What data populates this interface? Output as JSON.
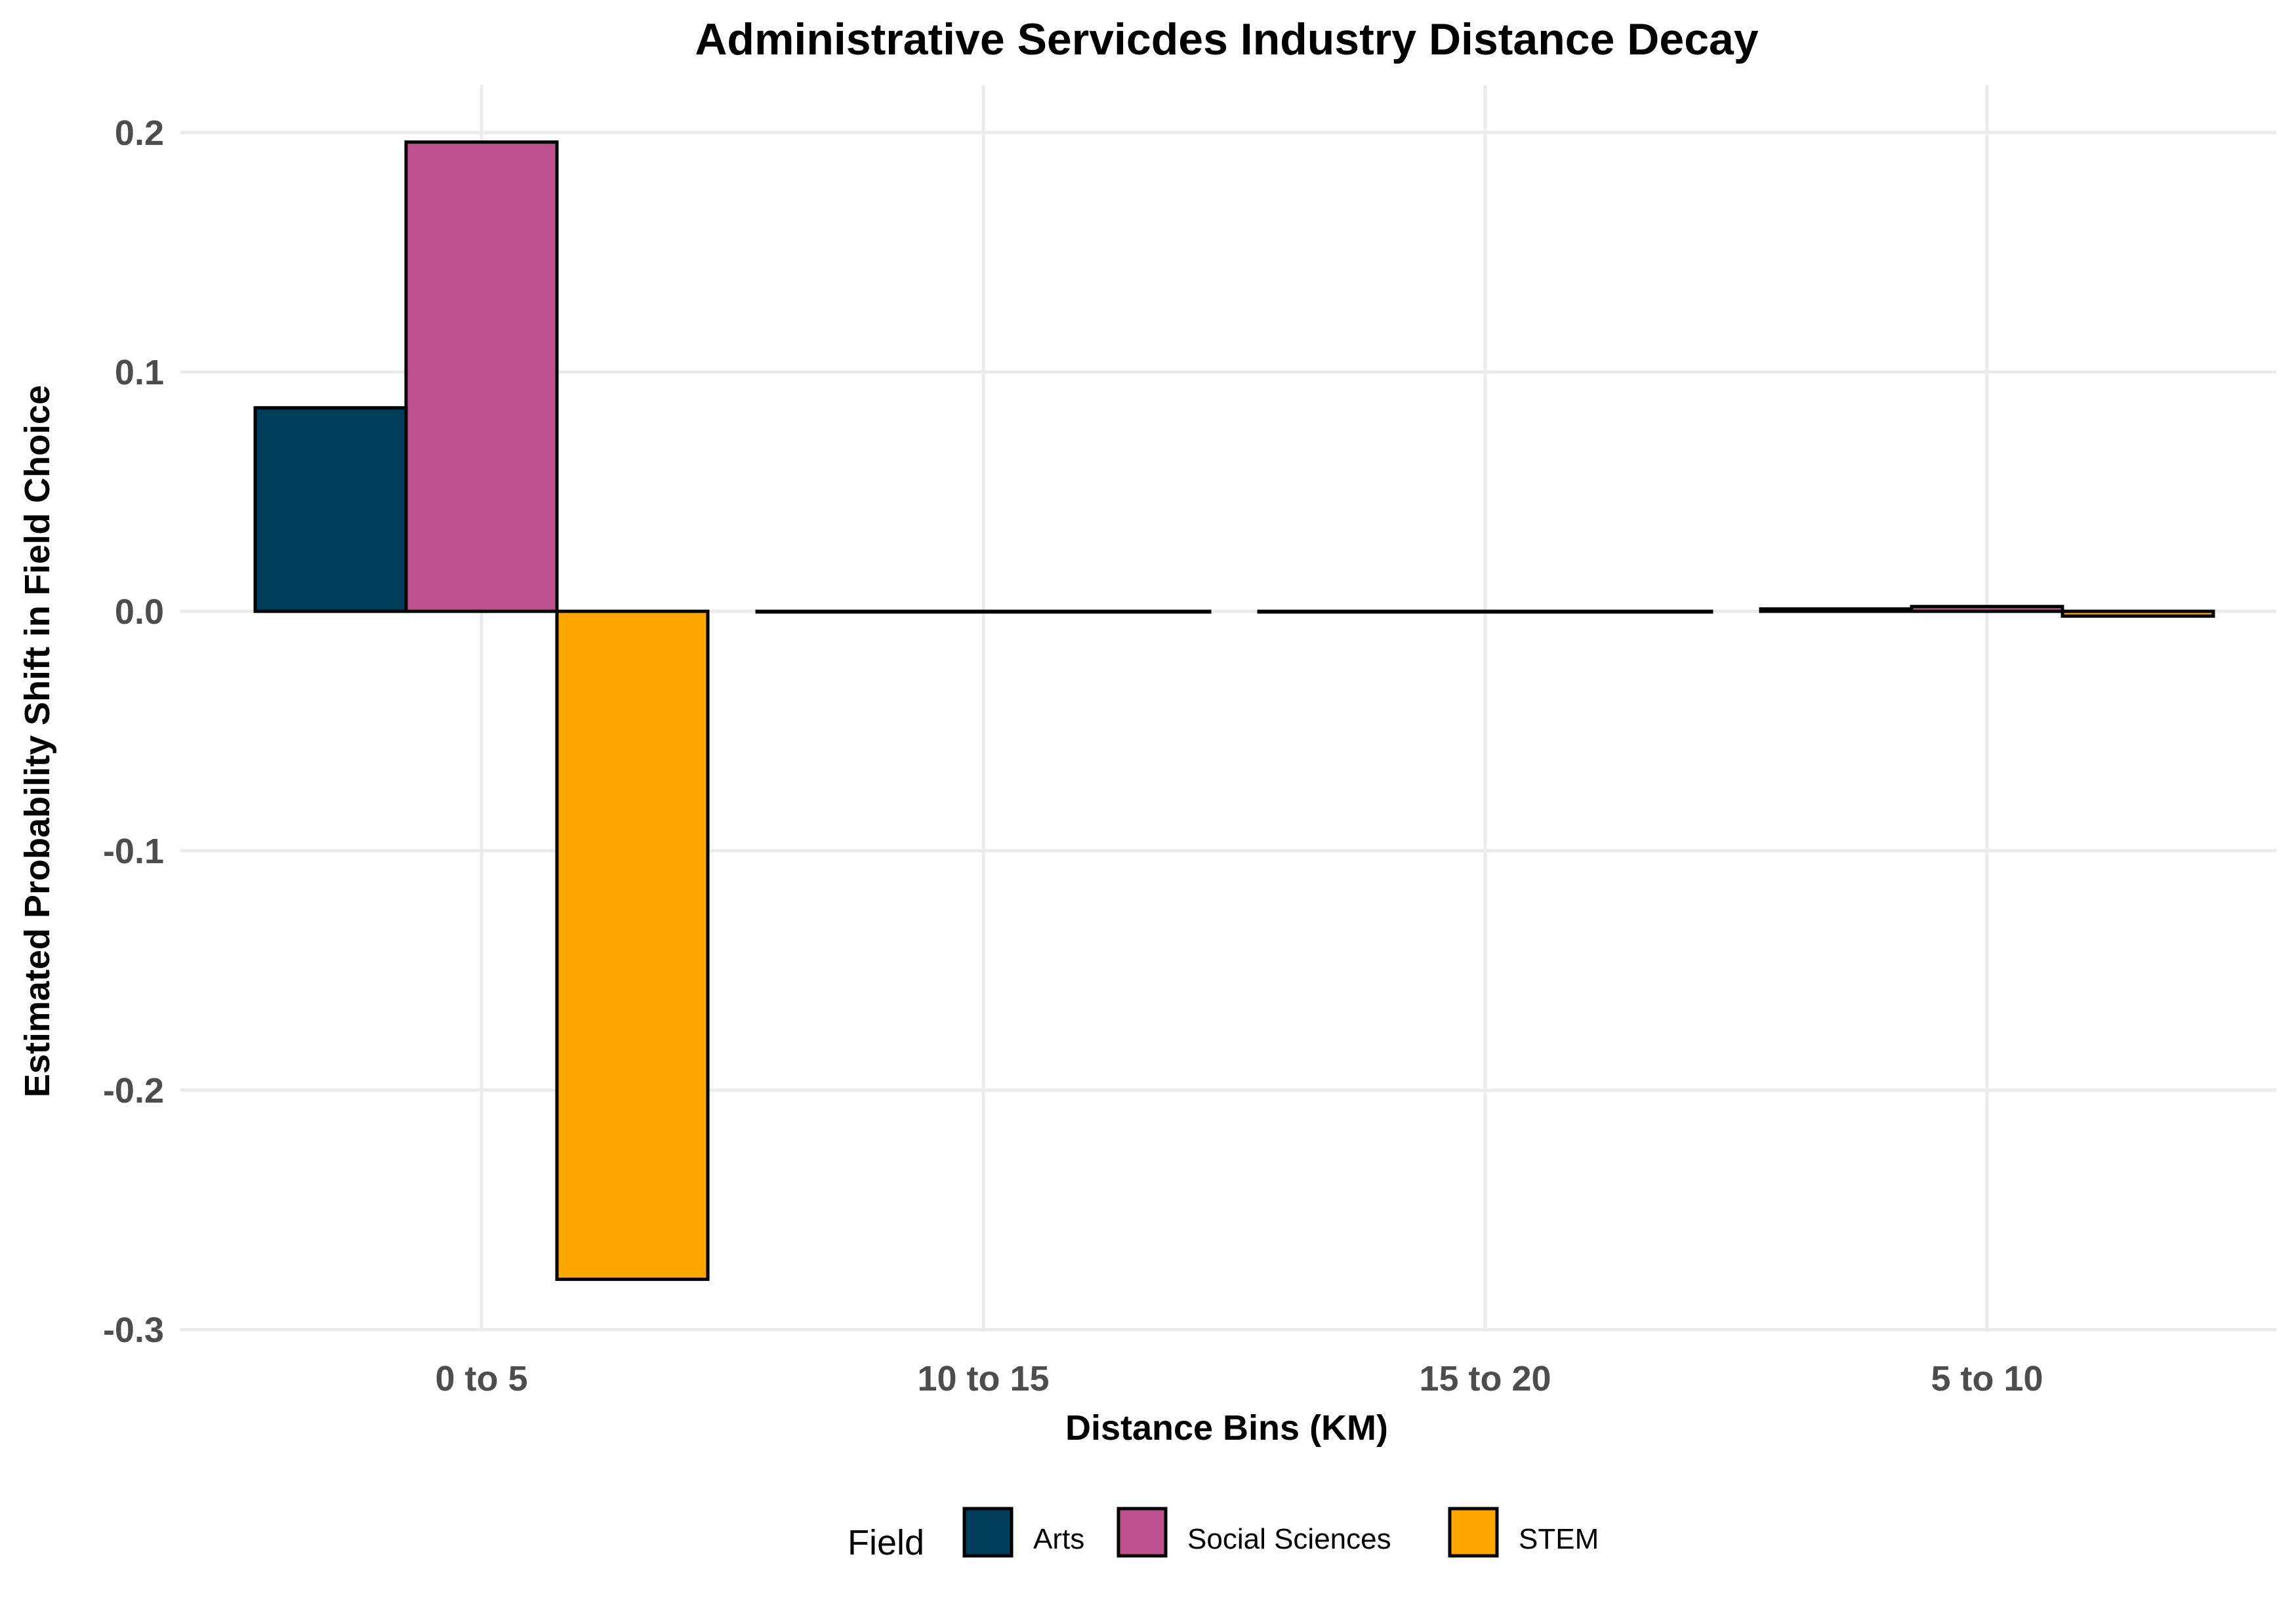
{
  "chart_data": {
    "type": "bar",
    "title": "Administrative Servicdes Industry Distance Decay",
    "xlabel": "Distance Bins (KM)",
    "ylabel": "Estimated Probability Shift in Field Choice",
    "categories": [
      "0 to 5",
      "10 to 15",
      "15 to 20",
      "5 to 10"
    ],
    "series": [
      {
        "name": "Arts",
        "color": "#003f5c",
        "values": [
          0.085,
          0.0,
          0.0,
          0.001
        ]
      },
      {
        "name": "Social Sciences",
        "color": "#bc5090",
        "values": [
          0.196,
          0.0,
          0.0,
          0.002
        ]
      },
      {
        "name": "STEM",
        "color": "#ffa600",
        "values": [
          -0.279,
          0.0,
          0.0,
          -0.002
        ]
      }
    ],
    "ylim": [
      -0.3,
      0.2
    ],
    "yticks": [
      0.2,
      0.1,
      0.0,
      -0.1,
      -0.2,
      -0.3
    ],
    "ytick_labels": [
      "0.2",
      "0.1",
      "0.0",
      "-0.1",
      "-0.2",
      "-0.3"
    ],
    "grid": true,
    "legend": {
      "title": "Field",
      "position": "bottom",
      "entries": [
        "Arts",
        "Social Sciences",
        "STEM"
      ]
    }
  }
}
